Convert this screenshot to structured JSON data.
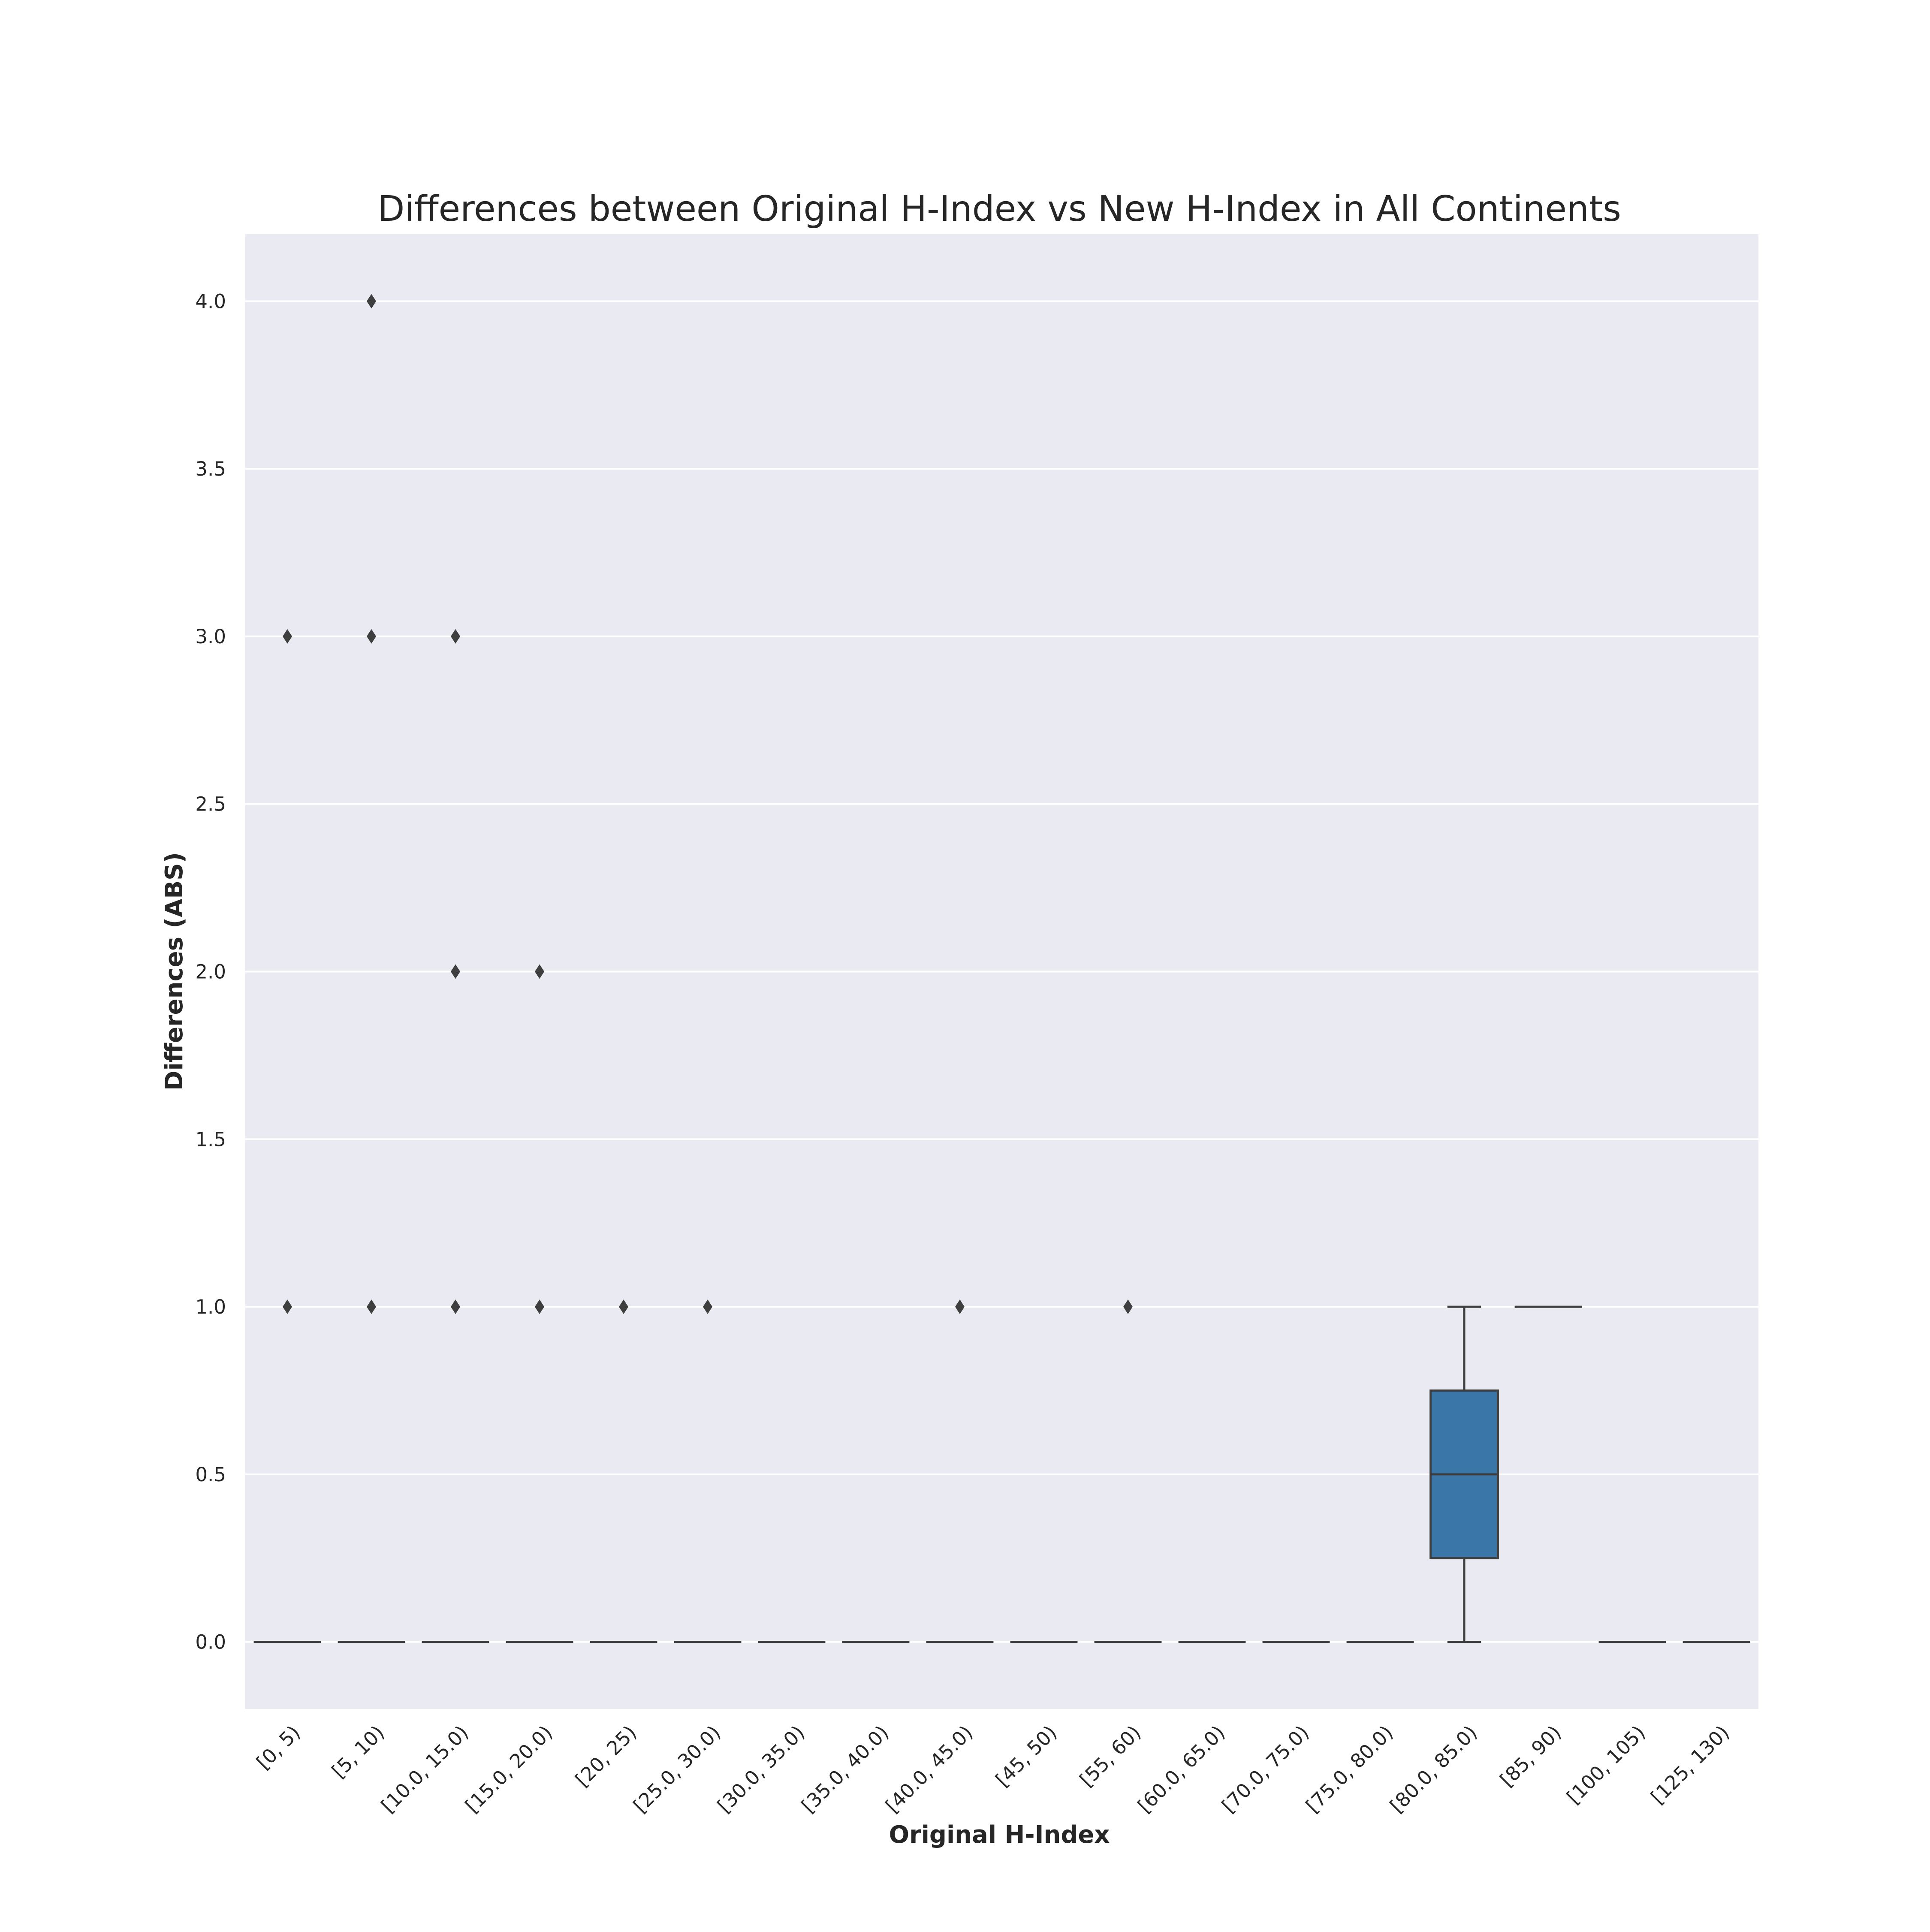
{
  "chart_data": {
    "type": "box",
    "title": "Differences between Original H-Index vs New H-Index in All Continents",
    "xlabel": "Original H-Index",
    "ylabel": "Differences (ABS)",
    "ylim": [
      -0.2,
      4.2
    ],
    "yticks": [
      0.0,
      0.5,
      1.0,
      1.5,
      2.0,
      2.5,
      3.0,
      3.5,
      4.0
    ],
    "ytick_labels": [
      "0.0",
      "0.5",
      "1.0",
      "1.5",
      "2.0",
      "2.5",
      "3.0",
      "3.5",
      "4.0"
    ],
    "grid": true,
    "background": "#eaeaf2",
    "grid_color": "#ffffff",
    "box_color": "#3a77a8",
    "line_color": "#3f3f3f",
    "categories": [
      "[0, 5)",
      "[5, 10)",
      "[10.0, 15.0)",
      "[15.0, 20.0)",
      "[20, 25)",
      "[25.0, 30.0)",
      "[30.0, 35.0)",
      "[35.0, 40.0)",
      "[40.0, 45.0)",
      "[45, 50)",
      "[55, 60)",
      "[60.0, 65.0)",
      "[70.0, 75.0)",
      "[75.0, 80.0)",
      "[80.0, 85.0)",
      "[85, 90)",
      "[100, 105)",
      "[125, 130)"
    ],
    "boxes": [
      {
        "q1": 0,
        "median": 0,
        "q3": 0,
        "whisker_low": 0,
        "whisker_high": 0,
        "outliers": [
          1,
          3
        ]
      },
      {
        "q1": 0,
        "median": 0,
        "q3": 0,
        "whisker_low": 0,
        "whisker_high": 0,
        "outliers": [
          1,
          3,
          4
        ]
      },
      {
        "q1": 0,
        "median": 0,
        "q3": 0,
        "whisker_low": 0,
        "whisker_high": 0,
        "outliers": [
          1,
          2,
          3
        ]
      },
      {
        "q1": 0,
        "median": 0,
        "q3": 0,
        "whisker_low": 0,
        "whisker_high": 0,
        "outliers": [
          1,
          2
        ]
      },
      {
        "q1": 0,
        "median": 0,
        "q3": 0,
        "whisker_low": 0,
        "whisker_high": 0,
        "outliers": [
          1
        ]
      },
      {
        "q1": 0,
        "median": 0,
        "q3": 0,
        "whisker_low": 0,
        "whisker_high": 0,
        "outliers": [
          1
        ]
      },
      {
        "q1": 0,
        "median": 0,
        "q3": 0,
        "whisker_low": 0,
        "whisker_high": 0,
        "outliers": []
      },
      {
        "q1": 0,
        "median": 0,
        "q3": 0,
        "whisker_low": 0,
        "whisker_high": 0,
        "outliers": []
      },
      {
        "q1": 0,
        "median": 0,
        "q3": 0,
        "whisker_low": 0,
        "whisker_high": 0,
        "outliers": [
          1
        ]
      },
      {
        "q1": 0,
        "median": 0,
        "q3": 0,
        "whisker_low": 0,
        "whisker_high": 0,
        "outliers": []
      },
      {
        "q1": 0,
        "median": 0,
        "q3": 0,
        "whisker_low": 0,
        "whisker_high": 0,
        "outliers": [
          1
        ]
      },
      {
        "q1": 0,
        "median": 0,
        "q3": 0,
        "whisker_low": 0,
        "whisker_high": 0,
        "outliers": []
      },
      {
        "q1": 0,
        "median": 0,
        "q3": 0,
        "whisker_low": 0,
        "whisker_high": 0,
        "outliers": []
      },
      {
        "q1": 0,
        "median": 0,
        "q3": 0,
        "whisker_low": 0,
        "whisker_high": 0,
        "outliers": []
      },
      {
        "q1": 0.25,
        "median": 0.5,
        "q3": 0.75,
        "whisker_low": 0,
        "whisker_high": 1,
        "outliers": []
      },
      {
        "q1": 1,
        "median": 1,
        "q3": 1,
        "whisker_low": 1,
        "whisker_high": 1,
        "outliers": []
      },
      {
        "q1": 0,
        "median": 0,
        "q3": 0,
        "whisker_low": 0,
        "whisker_high": 0,
        "outliers": []
      },
      {
        "q1": 0,
        "median": 0,
        "q3": 0,
        "whisker_low": 0,
        "whisker_high": 0,
        "outliers": []
      }
    ]
  }
}
